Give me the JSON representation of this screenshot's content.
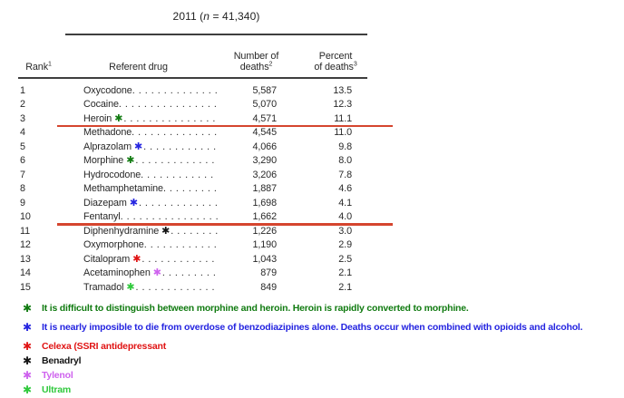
{
  "colors": {
    "dark_green": "#117b11",
    "blue": "#2424e0",
    "red": "#e01414",
    "black": "#141414",
    "violet": "#ce62ee",
    "light_green": "#2fc93c",
    "underline_red": "#d5452e"
  },
  "marker_glyph": "✱",
  "table": {
    "title": {
      "prefix": "2011 (",
      "n": "n",
      "suffix": " = 41,340)"
    },
    "headers": {
      "rank": {
        "text": "Rank",
        "sup": "1"
      },
      "drug": {
        "text": "Referent drug"
      },
      "deaths_line1": "Number of",
      "deaths_line2": {
        "text": "deaths",
        "sup": "2"
      },
      "percent_line1": "Percent",
      "percent_line2": {
        "text": "of deaths",
        "sup": "3"
      }
    },
    "rows": [
      {
        "rank": "1",
        "drug": "Oxycodone",
        "deaths": "5,587",
        "percent": "13.5",
        "marker": null,
        "underline": false
      },
      {
        "rank": "2",
        "drug": "Cocaine",
        "deaths": "5,070",
        "percent": "12.3",
        "marker": null,
        "underline": false
      },
      {
        "rank": "3",
        "drug": "Heroin",
        "deaths": "4,571",
        "percent": "11.1",
        "marker": "dark_green",
        "underline": true
      },
      {
        "rank": "4",
        "drug": "Methadone",
        "deaths": "4,545",
        "percent": "11.0",
        "marker": null,
        "underline": false
      },
      {
        "rank": "5",
        "drug": "Alprazolam",
        "deaths": "4,066",
        "percent": "9.8",
        "marker": "blue",
        "underline": false
      },
      {
        "rank": "6",
        "drug": "Morphine",
        "deaths": "3,290",
        "percent": "8.0",
        "marker": "dark_green",
        "underline": false
      },
      {
        "rank": "7",
        "drug": "Hydrocodone",
        "deaths": "3,206",
        "percent": "7.8",
        "marker": null,
        "underline": false
      },
      {
        "rank": "8",
        "drug": "Methamphetamine",
        "deaths": "1,887",
        "percent": "4.6",
        "marker": null,
        "underline": false
      },
      {
        "rank": "9",
        "drug": "Diazepam",
        "deaths": "1,698",
        "percent": "4.1",
        "marker": "blue",
        "underline": false
      },
      {
        "rank": "10",
        "drug": "Fentanyl",
        "deaths": "1,662",
        "percent": "4.0",
        "marker": null,
        "underline": true
      },
      {
        "rank": "11",
        "drug": "Diphenhydramine",
        "deaths": "1,226",
        "percent": "3.0",
        "marker": "black",
        "underline": false
      },
      {
        "rank": "12",
        "drug": "Oxymorphone",
        "deaths": "1,190",
        "percent": "2.9",
        "marker": null,
        "underline": false
      },
      {
        "rank": "13",
        "drug": "Citalopram",
        "deaths": "1,043",
        "percent": "2.5",
        "marker": "red",
        "underline": false
      },
      {
        "rank": "14",
        "drug": "Acetaminophen",
        "deaths": "879",
        "percent": "2.1",
        "marker": "violet",
        "underline": false
      },
      {
        "rank": "15",
        "drug": "Tramadol",
        "deaths": "849",
        "percent": "2.1",
        "marker": "light_green",
        "underline": false
      }
    ]
  },
  "footnotes": [
    {
      "color": "dark_green",
      "text": "It is difficult to distinguish between morphine and heroin. Heroin is rapidly converted to morphine."
    },
    {
      "color": "blue",
      "text": "It is nearly imposible to die from overdose of benzodiazipines alone. Deaths occur when combined with opioids and alcohol."
    },
    {
      "color": "red",
      "text": "Celexa (SSRI antidepressant"
    },
    {
      "color": "black",
      "text": "Benadryl"
    },
    {
      "color": "violet",
      "text": "Tylenol"
    },
    {
      "color": "light_green",
      "text": "Ultram"
    }
  ]
}
